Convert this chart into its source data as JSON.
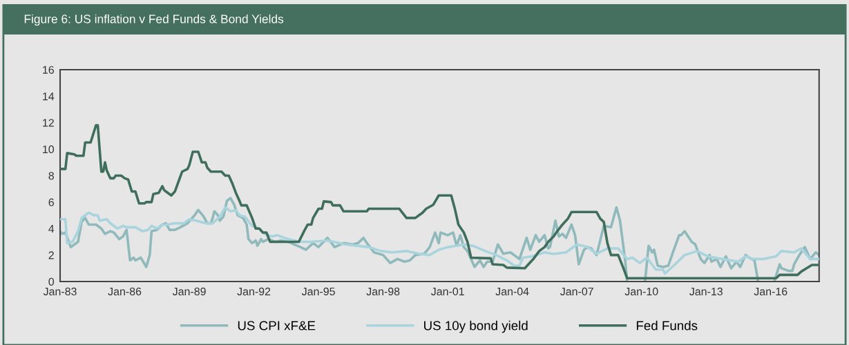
{
  "chart_data": {
    "type": "line",
    "title": "Figure 6: US inflation v Fed Funds & Bond Yields",
    "xlim": [
      "1983-01",
      "2018-04"
    ],
    "ylim": [
      0,
      16
    ],
    "yticks": [
      0,
      2,
      4,
      6,
      8,
      10,
      12,
      14,
      16
    ],
    "xticks": [
      {
        "value": "1983-01",
        "label": "Jan-83"
      },
      {
        "value": "1986-01",
        "label": "Jan-86"
      },
      {
        "value": "1989-01",
        "label": "Jan-89"
      },
      {
        "value": "1992-01",
        "label": "Jan-92"
      },
      {
        "value": "1995-01",
        "label": "Jan-95"
      },
      {
        "value": "1998-01",
        "label": "Jan-98"
      },
      {
        "value": "2001-01",
        "label": "Jan-01"
      },
      {
        "value": "2004-01",
        "label": "Jan-04"
      },
      {
        "value": "2007-01",
        "label": "Jan-07"
      },
      {
        "value": "2010-01",
        "label": "Jan-10"
      },
      {
        "value": "2013-01",
        "label": "Jan-13"
      },
      {
        "value": "2016-01",
        "label": "Jan-16"
      }
    ],
    "grid": false,
    "legend": "bottom",
    "marker": "none",
    "line_style": "solid",
    "series": [
      {
        "name": "US CPI xF&E",
        "color": "#8fb9ba",
        "x": [
          "1983-01",
          "1983-02",
          "1983-04",
          "1983-07",
          "1983-09",
          "1983-11",
          "1984-01",
          "1984-03",
          "1984-05",
          "1984-09",
          "1984-12",
          "1985-02",
          "1985-05",
          "1985-07",
          "1985-10",
          "1985-12",
          "1986-02",
          "1986-04",
          "1986-06",
          "1986-07",
          "1986-10",
          "1987-01",
          "1987-03",
          "1987-04",
          "1987-07",
          "1987-10",
          "1987-12",
          "1988-02",
          "1988-05",
          "1988-08",
          "1988-12",
          "1989-04",
          "1989-06",
          "1989-09",
          "1989-11",
          "1990-01",
          "1990-02",
          "1990-03",
          "1990-05",
          "1990-06",
          "1990-08",
          "1990-10",
          "1990-12",
          "1991-02",
          "1991-04",
          "1991-07",
          "1991-09",
          "1991-10",
          "1991-12",
          "1992-02",
          "1992-03",
          "1992-05",
          "1992-06",
          "1992-09",
          "1993-01",
          "1993-04",
          "1993-08",
          "1994-03",
          "1994-06",
          "1994-10",
          "1995-01",
          "1995-06",
          "1995-10",
          "1996-03",
          "1996-08",
          "1996-11",
          "1997-02",
          "1997-04",
          "1997-08",
          "1998-01",
          "1998-05",
          "1998-09",
          "1999-01",
          "1999-04",
          "1999-07",
          "1999-12",
          "2000-03",
          "2000-06",
          "2000-08",
          "2000-09",
          "2001-01",
          "2001-04",
          "2001-06",
          "2001-08",
          "2001-10",
          "2001-12",
          "2002-02",
          "2002-04",
          "2002-07",
          "2002-09",
          "2002-11",
          "2003-02",
          "2003-05",
          "2003-08",
          "2003-12",
          "2004-03",
          "2004-05",
          "2004-09",
          "2004-11",
          "2005-02",
          "2005-04",
          "2005-07",
          "2005-09",
          "2005-10",
          "2006-01",
          "2006-03",
          "2006-05",
          "2006-07",
          "2006-10",
          "2006-12",
          "2007-02",
          "2007-05",
          "2007-07",
          "2007-09",
          "2007-12",
          "2008-04",
          "2008-08",
          "2008-11",
          "2009-01",
          "2009-04",
          "2009-05",
          "2009-09",
          "2010-03",
          "2010-05",
          "2010-07",
          "2010-08",
          "2010-10",
          "2011-01",
          "2011-04",
          "2011-06",
          "2011-10",
          "2011-11",
          "2012-01",
          "2012-05",
          "2012-07",
          "2012-10",
          "2012-12",
          "2013-03",
          "2013-04",
          "2013-07",
          "2013-09",
          "2013-12",
          "2014-03",
          "2014-06",
          "2014-08",
          "2014-11",
          "2015-01",
          "2015-04",
          "2015-06",
          "2015-10",
          "2016-03",
          "2016-06",
          "2016-07",
          "2016-11",
          "2017-01",
          "2017-02",
          "2017-05",
          "2017-08",
          "2017-11",
          "2018-02",
          "2018-04"
        ],
        "values": [
          3.8,
          3.6,
          3.7,
          2.6,
          2.8,
          3.0,
          4.5,
          4.8,
          4.3,
          4.3,
          4.0,
          3.6,
          3.8,
          3.7,
          3.2,
          3.4,
          3.9,
          1.6,
          1.8,
          1.6,
          1.8,
          1.1,
          2.0,
          3.8,
          3.9,
          4.3,
          4.4,
          3.9,
          3.9,
          4.1,
          4.4,
          5.0,
          5.4,
          4.9,
          4.4,
          4.4,
          4.8,
          5.3,
          5.0,
          4.6,
          4.9,
          6.1,
          6.3,
          5.8,
          5.0,
          4.8,
          4.3,
          3.2,
          2.9,
          3.1,
          2.7,
          3.2,
          3.0,
          3.2,
          3.0,
          3.1,
          3.0,
          2.6,
          2.4,
          2.9,
          2.6,
          3.3,
          2.6,
          2.9,
          2.8,
          2.9,
          3.3,
          2.9,
          2.2,
          2.0,
          1.4,
          1.7,
          1.5,
          1.6,
          2.0,
          2.1,
          2.6,
          3.7,
          2.9,
          3.7,
          3.5,
          3.7,
          2.7,
          3.5,
          2.6,
          2.3,
          1.7,
          1.1,
          1.6,
          1.1,
          1.5,
          1.5,
          2.8,
          2.1,
          2.2,
          1.9,
          1.7,
          3.3,
          2.4,
          3.5,
          3.0,
          3.5,
          2.5,
          2.6,
          4.6,
          3.4,
          3.6,
          3.3,
          4.3,
          3.5,
          1.3,
          2.4,
          2.6,
          2.5,
          2.0,
          4.2,
          4.1,
          5.6,
          4.6,
          1.5,
          0.0,
          null,
          0.0,
          2.7,
          2.2,
          2.4,
          1.2,
          1.1,
          1.2,
          2.0,
          3.5,
          3.5,
          3.8,
          3.0,
          2.8,
          1.7,
          1.4,
          2.0,
          1.5,
          1.7,
          1.1,
          1.9,
          1.0,
          1.5,
          1.1,
          2.0,
          1.8,
          1.6,
          0.0,
          null,
          0.0,
          1.3,
          1.0,
          0.8,
          0.8,
          1.3,
          2.0,
          2.6,
          1.7,
          2.2,
          2.0
        ]
      },
      {
        "name": "US 10y bond yield",
        "color": "#a9d4dd",
        "x": [
          "1983-01",
          "1983-04",
          "1983-05",
          "1983-08",
          "1983-11",
          "1984-01",
          "1984-03",
          "1984-05",
          "1984-08",
          "1984-10",
          "1984-11",
          "1985-03",
          "1985-05",
          "1985-09",
          "1985-12",
          "1986-02",
          "1986-07",
          "1986-11",
          "1987-02",
          "1987-04",
          "1987-07",
          "1987-10",
          "1988-01",
          "1988-05",
          "1988-10",
          "1989-01",
          "1989-05",
          "1989-10",
          "1990-02",
          "1990-06",
          "1990-09",
          "1990-12",
          "1991-03",
          "1991-05",
          "1991-08",
          "1991-12",
          "1992-04",
          "1992-07",
          "1992-11",
          "1993-02",
          "1993-08",
          "1994-03",
          "1994-09",
          "1995-06",
          "1996-04",
          "1997-05",
          "1997-12",
          "1998-06",
          "1999-02",
          "1999-09",
          "2000-03",
          "2000-08",
          "2001-01",
          "2001-06",
          "2001-10",
          "2002-03",
          "2002-10",
          "2003-04",
          "2003-10",
          "2004-02",
          "2004-05",
          "2004-07",
          "2004-12",
          "2005-07",
          "2005-11",
          "2006-01",
          "2006-07",
          "2007-01",
          "2007-07",
          "2007-12",
          "2008-06",
          "2008-12",
          "2009-05",
          "2009-08",
          "2009-12",
          "2010-04",
          "2010-09",
          "2011-01",
          "2011-02",
          "2011-07",
          "2012-01",
          "2012-08",
          "2013-02",
          "2013-10",
          "2014-07",
          "2014-11",
          "2015-03",
          "2015-09",
          "2016-04",
          "2016-07",
          "2017-02",
          "2017-06",
          "2017-11",
          "2018-04"
        ],
        "values": [
          4.7,
          4.7,
          2.9,
          3.0,
          3.8,
          4.8,
          5.0,
          5.2,
          5.0,
          5.0,
          4.6,
          4.7,
          4.4,
          4.0,
          4.2,
          4.1,
          4.1,
          3.8,
          3.9,
          4.2,
          4.0,
          4.3,
          4.3,
          4.4,
          4.4,
          4.7,
          4.6,
          4.4,
          4.4,
          4.9,
          5.6,
          5.3,
          5.4,
          5.0,
          4.9,
          4.2,
          4.0,
          3.6,
          3.4,
          3.5,
          3.2,
          3.0,
          3.0,
          3.1,
          2.8,
          2.6,
          2.3,
          2.2,
          2.3,
          2.1,
          2.0,
          2.4,
          2.6,
          2.7,
          2.8,
          2.7,
          2.3,
          2.0,
          1.6,
          1.2,
          1.2,
          1.8,
          1.9,
          2.2,
          2.1,
          2.1,
          2.2,
          2.8,
          2.6,
          2.1,
          2.5,
          2.5,
          1.7,
          1.8,
          1.4,
          1.8,
          0.9,
          0.9,
          0.6,
          1.2,
          2.0,
          2.3,
          1.9,
          1.7,
          1.5,
          1.9,
          1.7,
          1.7,
          1.9,
          2.3,
          2.2,
          2.5,
          1.7,
          1.7
        ]
      },
      {
        "name": "Fed Funds",
        "color": "#3f6e5c",
        "x": [
          "1983-01",
          "1983-04",
          "1983-05",
          "1983-09",
          "1983-10",
          "1984-02",
          "1984-03",
          "1984-06",
          "1984-09",
          "1984-10",
          "1984-11",
          "1984-12",
          "1985-01",
          "1985-02",
          "1985-03",
          "1985-05",
          "1985-07",
          "1985-08",
          "1985-11",
          "1986-01",
          "1986-03",
          "1986-05",
          "1986-07",
          "1986-09",
          "1986-12",
          "1987-01",
          "1987-04",
          "1987-05",
          "1987-08",
          "1987-10",
          "1987-11",
          "1987-12",
          "1988-03",
          "1988-05",
          "1988-09",
          "1988-12",
          "1989-01",
          "1989-03",
          "1989-06",
          "1989-08",
          "1989-10",
          "1989-11",
          "1990-01",
          "1990-07",
          "1990-09",
          "1990-11",
          "1991-01",
          "1991-03",
          "1991-05",
          "1991-06",
          "1991-09",
          "1991-12",
          "1992-02",
          "1992-04",
          "1992-06",
          "1992-08",
          "1992-10",
          "1994-02",
          "1994-05",
          "1994-07",
          "1994-09",
          "1994-10",
          "1995-01",
          "1995-03",
          "1995-04",
          "1995-08",
          "1995-09",
          "1996-01",
          "1996-03",
          "1997-04",
          "1997-05",
          "1998-10",
          "1999-02",
          "1999-07",
          "1999-09",
          "1999-11",
          "2000-01",
          "2000-05",
          "2000-08",
          "2001-03",
          "2001-05",
          "2001-07",
          "2001-10",
          "2001-12",
          "2002-02",
          "2003-01",
          "2003-02",
          "2003-08",
          "2003-10",
          "2004-08",
          "2004-10",
          "2005-01",
          "2005-04",
          "2005-07",
          "2005-09",
          "2005-12",
          "2006-02",
          "2006-05",
          "2006-08",
          "2006-10",
          "2007-12",
          "2008-02",
          "2008-04",
          "2008-06",
          "2008-08",
          "2008-12",
          "2009-03",
          "2009-05",
          "2016-04",
          "2016-06",
          "2017-04",
          "2017-06",
          "2017-09",
          "2017-12",
          "2018-04"
        ],
        "values": [
          8.5,
          8.5,
          9.7,
          9.6,
          9.5,
          9.5,
          10.5,
          10.5,
          11.8,
          11.8,
          10.0,
          8.3,
          8.3,
          9.0,
          8.4,
          7.8,
          7.8,
          8.0,
          8.0,
          7.8,
          7.7,
          6.8,
          6.8,
          5.9,
          5.9,
          6.0,
          6.0,
          6.6,
          6.7,
          7.2,
          6.9,
          6.8,
          6.5,
          6.8,
          8.3,
          8.5,
          8.8,
          9.8,
          9.8,
          9.0,
          9.0,
          8.6,
          8.3,
          8.3,
          8.0,
          8.0,
          7.4,
          6.7,
          6.1,
          5.75,
          5.75,
          4.8,
          4.0,
          4.0,
          3.7,
          3.7,
          3.0,
          3.0,
          3.8,
          4.3,
          4.3,
          4.8,
          5.5,
          5.5,
          6.05,
          6.0,
          5.75,
          5.75,
          5.3,
          5.3,
          5.5,
          5.5,
          4.8,
          4.8,
          5.0,
          5.2,
          5.5,
          5.8,
          6.5,
          6.5,
          5.5,
          4.3,
          3.7,
          3.0,
          1.8,
          1.75,
          1.3,
          1.25,
          1.05,
          1.0,
          1.3,
          1.75,
          2.3,
          2.6,
          3.0,
          3.4,
          3.8,
          4.3,
          4.75,
          5.25,
          5.25,
          4.75,
          4.5,
          2.9,
          2.0,
          2.0,
          1.0,
          0.25,
          0.25,
          0.5,
          0.5,
          0.75,
          1.0,
          1.25,
          1.25
        ]
      }
    ]
  }
}
